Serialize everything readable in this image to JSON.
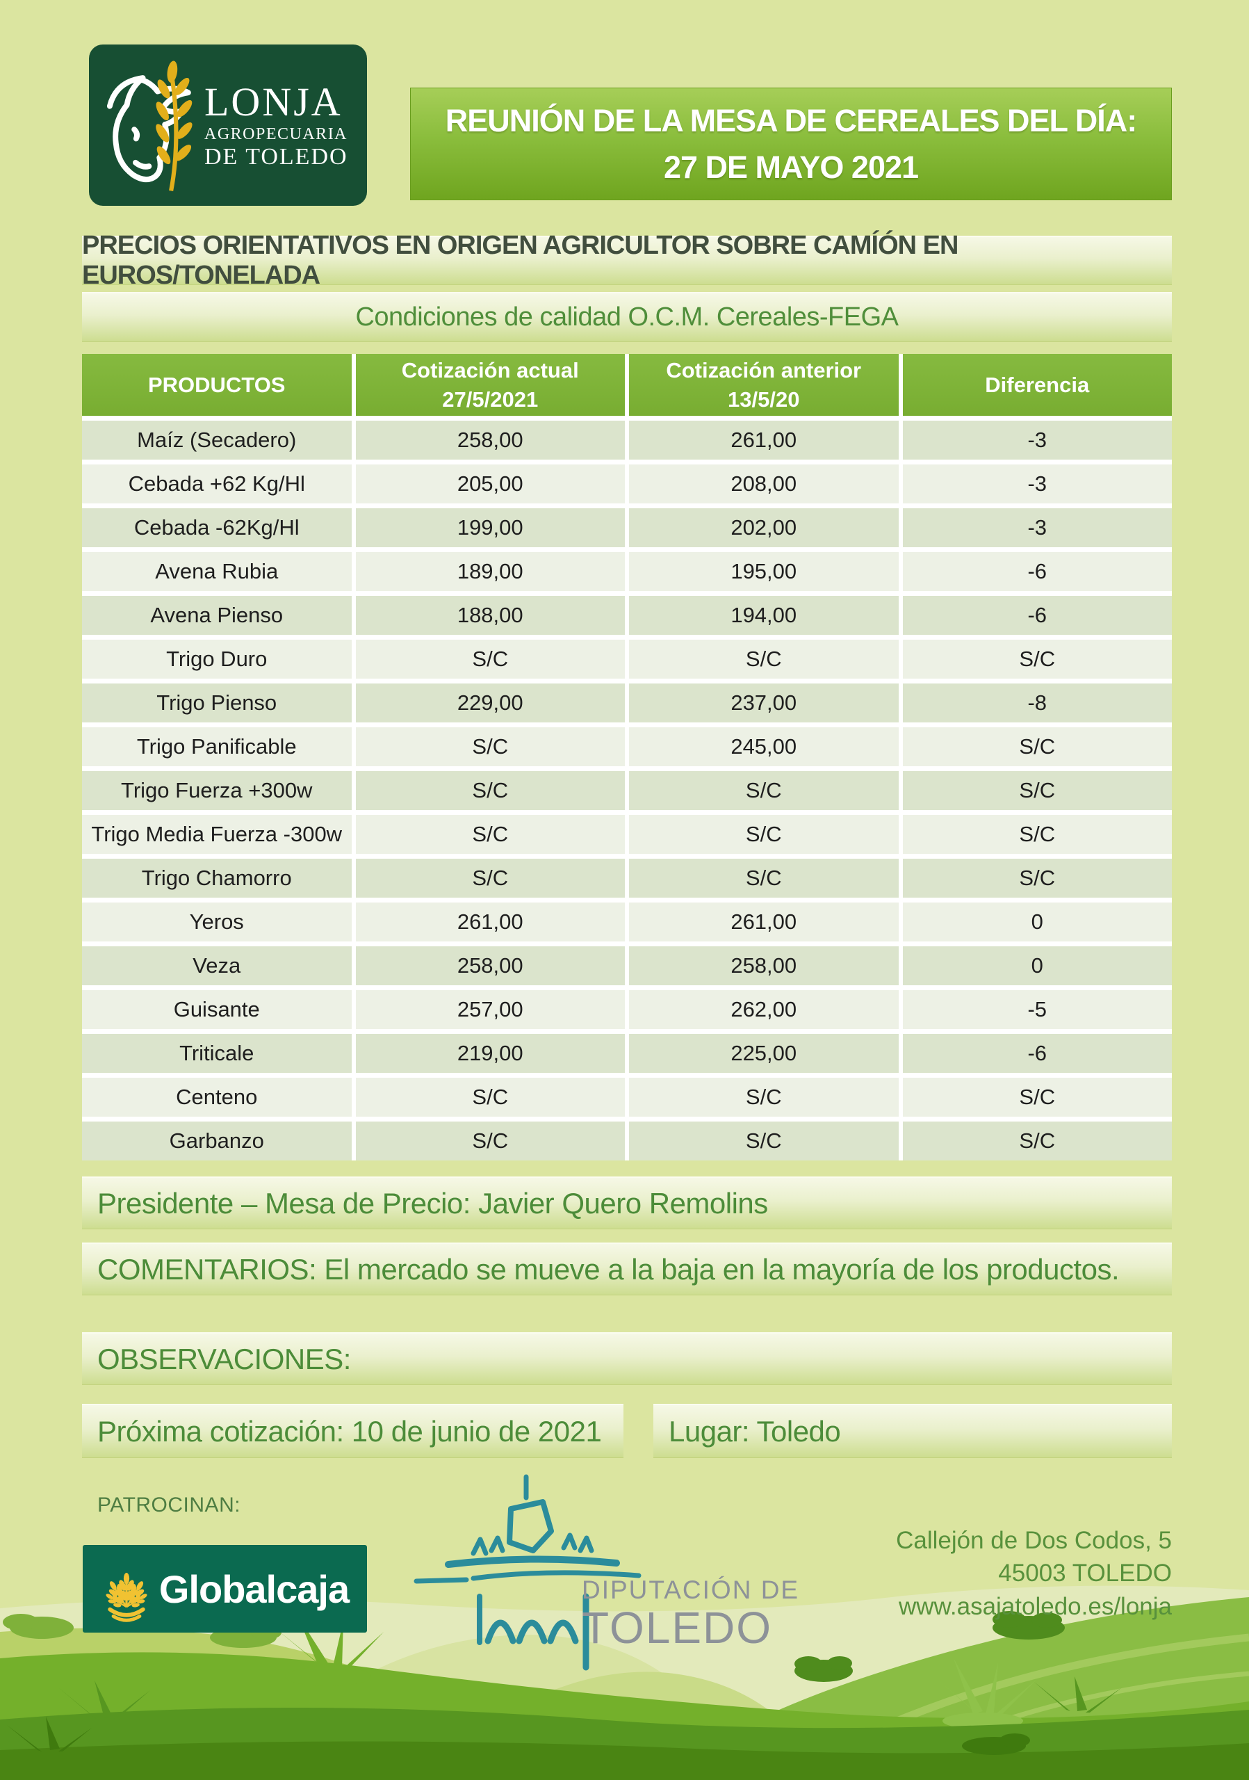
{
  "logo": {
    "line1": "LONJA",
    "line2": "AGROPECUARIA",
    "line3": "DE TOLEDO"
  },
  "banner": {
    "line1": "REUNIÓN DE LA MESA DE CEREALES DEL DÍA:",
    "line2": "27 DE MAYO 2021"
  },
  "title_bar": "PRECIOS ORIENTATIVOS EN ORIGEN AGRICULTOR SOBRE CAMÍÓN EN EUROS/TONELADA",
  "subtitle_bar": "Condiciones de calidad O.C.M. Cereales-FEGA",
  "table": {
    "headers": [
      {
        "line1": "PRODUCTOS",
        "line2": ""
      },
      {
        "line1": "Cotización actual",
        "line2": "27/5/2021"
      },
      {
        "line1": "Cotización anterior",
        "line2": "13/5/20"
      },
      {
        "line1": "Diferencia",
        "line2": ""
      }
    ],
    "rows": [
      {
        "product": "Maíz (Secadero)",
        "actual": "258,00",
        "anterior": "261,00",
        "diferencia": "-3"
      },
      {
        "product": "Cebada +62 Kg/Hl",
        "actual": "205,00",
        "anterior": "208,00",
        "diferencia": "-3"
      },
      {
        "product": "Cebada -62Kg/Hl",
        "actual": "199,00",
        "anterior": "202,00",
        "diferencia": "-3"
      },
      {
        "product": "Avena Rubia",
        "actual": "189,00",
        "anterior": "195,00",
        "diferencia": "-6"
      },
      {
        "product": "Avena Pienso",
        "actual": "188,00",
        "anterior": "194,00",
        "diferencia": "-6"
      },
      {
        "product": "Trigo Duro",
        "actual": "S/C",
        "anterior": "S/C",
        "diferencia": "S/C"
      },
      {
        "product": "Trigo Pienso",
        "actual": "229,00",
        "anterior": "237,00",
        "diferencia": "-8"
      },
      {
        "product": "Trigo Panificable",
        "actual": "S/C",
        "anterior": "245,00",
        "diferencia": "S/C"
      },
      {
        "product": "Trigo Fuerza +300w",
        "actual": "S/C",
        "anterior": "S/C",
        "diferencia": "S/C"
      },
      {
        "product": "Trigo Media Fuerza -300w",
        "actual": "S/C",
        "anterior": "S/C",
        "diferencia": "S/C"
      },
      {
        "product": "Trigo Chamorro",
        "actual": "S/C",
        "anterior": "S/C",
        "diferencia": "S/C"
      },
      {
        "product": "Yeros",
        "actual": "261,00",
        "anterior": "261,00",
        "diferencia": "0"
      },
      {
        "product": "Veza",
        "actual": "258,00",
        "anterior": "258,00",
        "diferencia": "0"
      },
      {
        "product": "Guisante",
        "actual": "257,00",
        "anterior": "262,00",
        "diferencia": "-5"
      },
      {
        "product": "Triticale",
        "actual": "219,00",
        "anterior": "225,00",
        "diferencia": "-6"
      },
      {
        "product": "Centeno",
        "actual": "S/C",
        "anterior": "S/C",
        "diferencia": "S/C"
      },
      {
        "product": "Garbanzo",
        "actual": "S/C",
        "anterior": "S/C",
        "diferencia": "S/C"
      }
    ]
  },
  "presidente": "Presidente – Mesa de Precio: Javier Quero Remolins",
  "comentarios": "COMENTARIOS: El mercado se mueve a la baja en la mayoría de los productos.",
  "observaciones": "OBSERVACIONES:",
  "proxima": "Próxima cotización: 10 de junio de 2021",
  "lugar": "Lugar: Toledo",
  "patrocinan": "PATROCINAN:",
  "sponsors": {
    "globalcaja": "Globalcaja",
    "diputacion_line1": "DIPUTACIÓN DE",
    "diputacion_line2": "TOLEDO"
  },
  "address": {
    "line1": "Callejón de Dos Codos, 5",
    "line2": "45003 TOLEDO",
    "line3": "www.asajatoledo.es/lonja"
  },
  "colors": {
    "page_background": "#dbe5a0",
    "logo_green": "#174f33",
    "banner_green": "#7fb132",
    "table_header_green": "#7fb43a",
    "row_dark": "#dbe4cc",
    "row_light": "#edf1e5",
    "note_green": "#4c8c39",
    "globalcaja_green": "#0b6a50",
    "wheat_gold": "#e9b51e",
    "diputacion_teal": "#2b8c9b",
    "diputacion_gray": "#8d9298"
  }
}
